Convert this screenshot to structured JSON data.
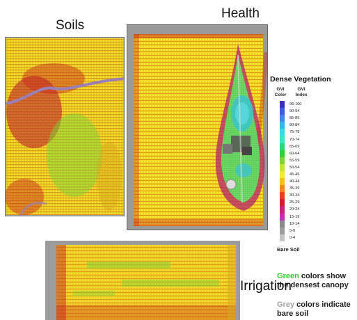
{
  "panels": {
    "soils_title": "Soils",
    "health_title": "Health",
    "irrigation_title": "Irrigation"
  },
  "legend": {
    "title": "Dense Vegetation",
    "col_color": [
      "GVI",
      "Color"
    ],
    "col_index": [
      "GVI",
      "Index"
    ],
    "rows": [
      {
        "range": "95-100",
        "color": "#3a2fbf"
      },
      {
        "range": "90-94",
        "color": "#3d5fd6"
      },
      {
        "range": "85-89",
        "color": "#3f86e6"
      },
      {
        "range": "80-84",
        "color": "#3bb4ec"
      },
      {
        "range": "75-79",
        "color": "#3ad8e6"
      },
      {
        "range": "70-74",
        "color": "#3be6c4"
      },
      {
        "range": "65-69",
        "color": "#2fd67a"
      },
      {
        "range": "60-64",
        "color": "#36c93a"
      },
      {
        "range": "55-59",
        "color": "#7dd43a"
      },
      {
        "range": "50-54",
        "color": "#c7e23a"
      },
      {
        "range": "45-49",
        "color": "#f2ea2e"
      },
      {
        "range": "40-44",
        "color": "#f4c21e"
      },
      {
        "range": "35-39",
        "color": "#ee8a1e"
      },
      {
        "range": "30-34",
        "color": "#e6421e"
      },
      {
        "range": "25-29",
        "color": "#d21e2e"
      },
      {
        "range": "20-24",
        "color": "#c8267a"
      },
      {
        "range": "15-19",
        "color": "#c42fc0"
      },
      {
        "range": "10-14",
        "color": "#8a8a8a"
      },
      {
        "range": "5-9",
        "color": "#9e9e9e"
      },
      {
        "range": "0-4",
        "color": "#c4c4c4"
      }
    ],
    "bare_soil": "Bare Soil"
  },
  "notes": {
    "green_word": "Green",
    "green_rest_1": " colors show",
    "green_rest_2": "the densest canopy",
    "grey_word": "Grey",
    "grey_rest_1": " colors indicate",
    "grey_rest_2": "bare soil"
  }
}
